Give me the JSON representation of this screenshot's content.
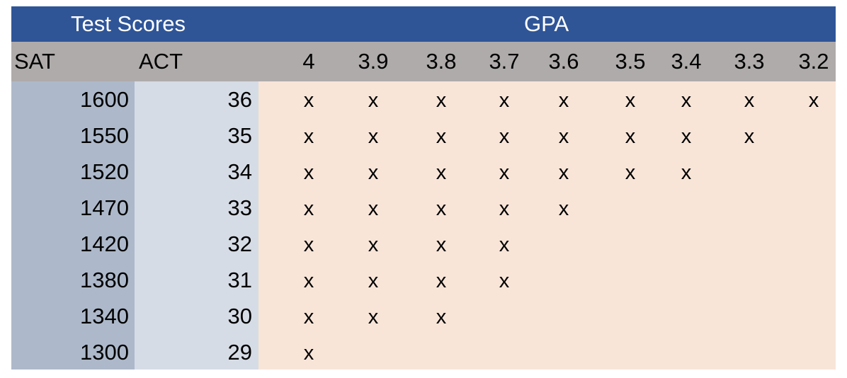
{
  "header": {
    "test_scores": "Test Scores",
    "gpa": "GPA"
  },
  "subheader": {
    "sat": "SAT",
    "act": "ACT",
    "gpa_levels": [
      "4",
      "3.9",
      "3.8",
      "3.7",
      "3.6",
      "3.5",
      "3.4",
      "3.3",
      "3.2"
    ]
  },
  "mark_symbol": "x",
  "rows": [
    {
      "sat": "1600",
      "act": "36",
      "marks": [
        1,
        1,
        1,
        1,
        1,
        1,
        1,
        1,
        1
      ]
    },
    {
      "sat": "1550",
      "act": "35",
      "marks": [
        1,
        1,
        1,
        1,
        1,
        1,
        1,
        1,
        0
      ]
    },
    {
      "sat": "1520",
      "act": "34",
      "marks": [
        1,
        1,
        1,
        1,
        1,
        1,
        1,
        0,
        0
      ]
    },
    {
      "sat": "1470",
      "act": "33",
      "marks": [
        1,
        1,
        1,
        1,
        1,
        0,
        0,
        0,
        0
      ]
    },
    {
      "sat": "1420",
      "act": "32",
      "marks": [
        1,
        1,
        1,
        1,
        0,
        0,
        0,
        0,
        0
      ]
    },
    {
      "sat": "1380",
      "act": "31",
      "marks": [
        1,
        1,
        1,
        1,
        0,
        0,
        0,
        0,
        0
      ]
    },
    {
      "sat": "1340",
      "act": "30",
      "marks": [
        1,
        1,
        1,
        0,
        0,
        0,
        0,
        0,
        0
      ]
    },
    {
      "sat": "1300",
      "act": "29",
      "marks": [
        1,
        0,
        0,
        0,
        0,
        0,
        0,
        0,
        0
      ]
    }
  ],
  "colors": {
    "header_bg": "#2F5597",
    "subheader_bg": "#AFABAB",
    "sat_col_bg": "#ADB9CA",
    "act_col_bg": "#D6DCE5",
    "gpa_area_bg": "#F8E5D8"
  }
}
